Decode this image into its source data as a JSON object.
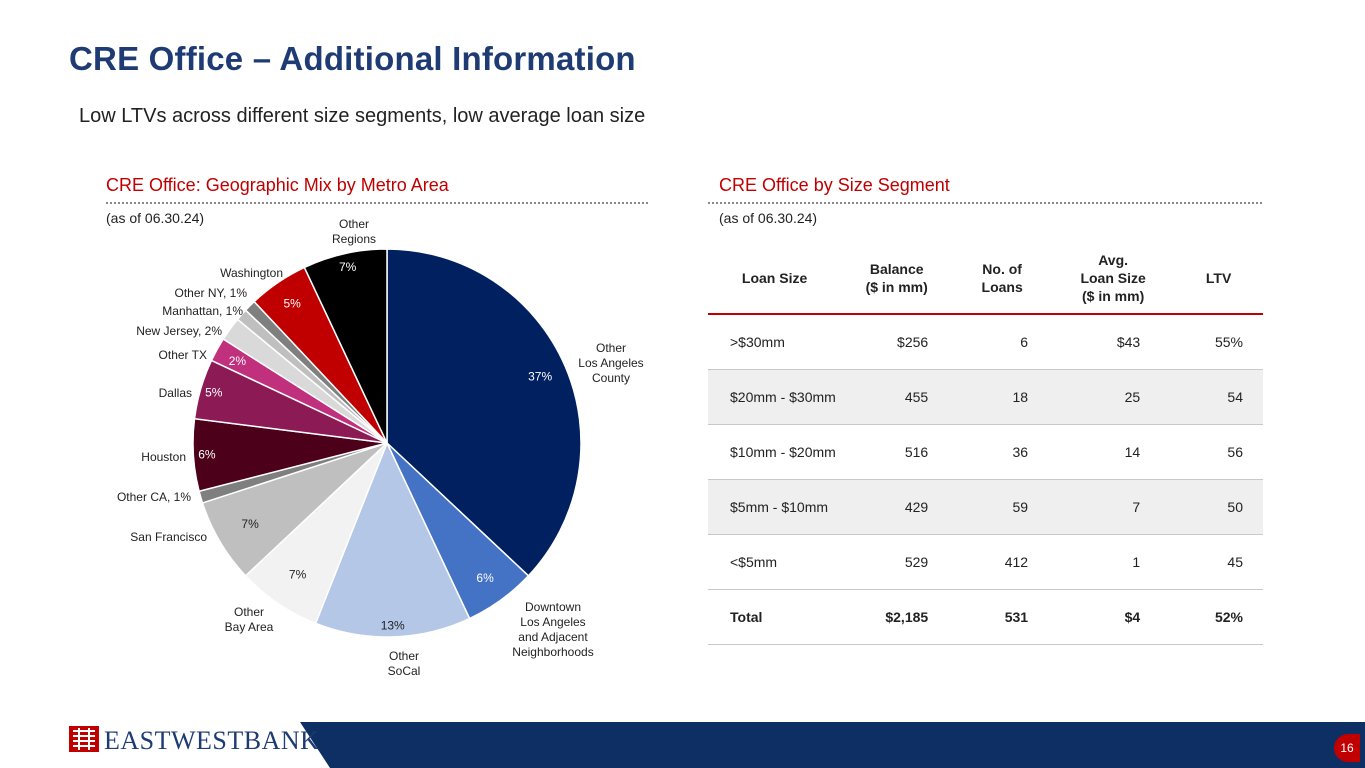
{
  "page": {
    "title": "CRE Office – Additional Information",
    "subtitle": "Low LTVs across different size segments, low average loan size",
    "page_number": "16"
  },
  "left_panel": {
    "heading": "CRE Office: Geographic Mix by Metro Area",
    "as_of": "(as of 06.30.24)"
  },
  "right_panel": {
    "heading": "CRE Office by Size Segment",
    "as_of": "(as of 06.30.24)"
  },
  "footer": {
    "logo_text": "EASTWESTBANK"
  },
  "colors": {
    "title": "#1f3b73",
    "accent_red": "#c00000",
    "footer_blue": "#0d2f63"
  },
  "chart_data": [
    {
      "type": "pie",
      "title": "CRE Office: Geographic Mix by Metro Area",
      "start": "12 o'clock, clockwise",
      "slices": [
        {
          "label": "Other\nLos Angeles\nCounty",
          "value": 37,
          "pct_text": "37%",
          "color": "#002060",
          "pct_color": "#ffffff"
        },
        {
          "label": "Downtown\nLos Angeles\nand Adjacent\nNeighborhoods",
          "value": 6,
          "pct_text": "6%",
          "color": "#4472c4",
          "pct_color": "#ffffff"
        },
        {
          "label": "Other\nSoCal",
          "value": 13,
          "pct_text": "13%",
          "color": "#b4c7e7",
          "pct_color": "#222222"
        },
        {
          "label": "Other\nBay Area",
          "value": 7,
          "pct_text": "7%",
          "color": "#f2f2f2",
          "pct_color": "#222222"
        },
        {
          "label": "San Francisco",
          "value": 7,
          "pct_text": "7%",
          "color": "#bfbfbf",
          "pct_color": "#222222"
        },
        {
          "label": "Other CA, 1%",
          "value": 1,
          "pct_text": "",
          "color": "#7f7f7f",
          "pct_color": "#222222"
        },
        {
          "label": "Houston",
          "value": 6,
          "pct_text": "6%",
          "color": "#4d0019",
          "pct_color": "#ffffff"
        },
        {
          "label": "Dallas",
          "value": 5,
          "pct_text": "5%",
          "color": "#8b1a55",
          "pct_color": "#ffffff"
        },
        {
          "label": "Other TX",
          "value": 2,
          "pct_text": "2%",
          "color": "#c0307c",
          "pct_color": "#ffffff"
        },
        {
          "label": "New Jersey, 2%",
          "value": 2,
          "pct_text": "",
          "color": "#d9d9d9",
          "pct_color": "#222222"
        },
        {
          "label": "Manhattan, 1%",
          "value": 1,
          "pct_text": "",
          "color": "#bfbfbf",
          "pct_color": "#222222"
        },
        {
          "label": "Other NY, 1%",
          "value": 1,
          "pct_text": "",
          "color": "#7f7f7f",
          "pct_color": "#222222"
        },
        {
          "label": "Washington",
          "value": 5,
          "pct_text": "5%",
          "color": "#c00000",
          "pct_color": "#ffffff"
        },
        {
          "label": "Other\nRegions",
          "value": 7,
          "pct_text": "7%",
          "color": "#000000",
          "pct_color": "#ffffff"
        }
      ]
    },
    {
      "type": "table",
      "title": "CRE Office by Size Segment",
      "columns": [
        "Loan Size",
        "Balance\n($ in mm)",
        "No. of\nLoans",
        "Avg.\nLoan Size\n($ in mm)",
        "LTV"
      ],
      "rows": [
        [
          ">$30mm",
          "$256",
          "6",
          "$43",
          "55%"
        ],
        [
          "$20mm - $30mm",
          "455",
          "18",
          "25",
          "54"
        ],
        [
          "$10mm - $20mm",
          "516",
          "36",
          "14",
          "56"
        ],
        [
          "$5mm - $10mm",
          "429",
          "59",
          "7",
          "50"
        ],
        [
          "<$5mm",
          "529",
          "412",
          "1",
          "45"
        ]
      ],
      "total": [
        "Total",
        "$2,185",
        "531",
        "$4",
        "52%"
      ]
    }
  ]
}
